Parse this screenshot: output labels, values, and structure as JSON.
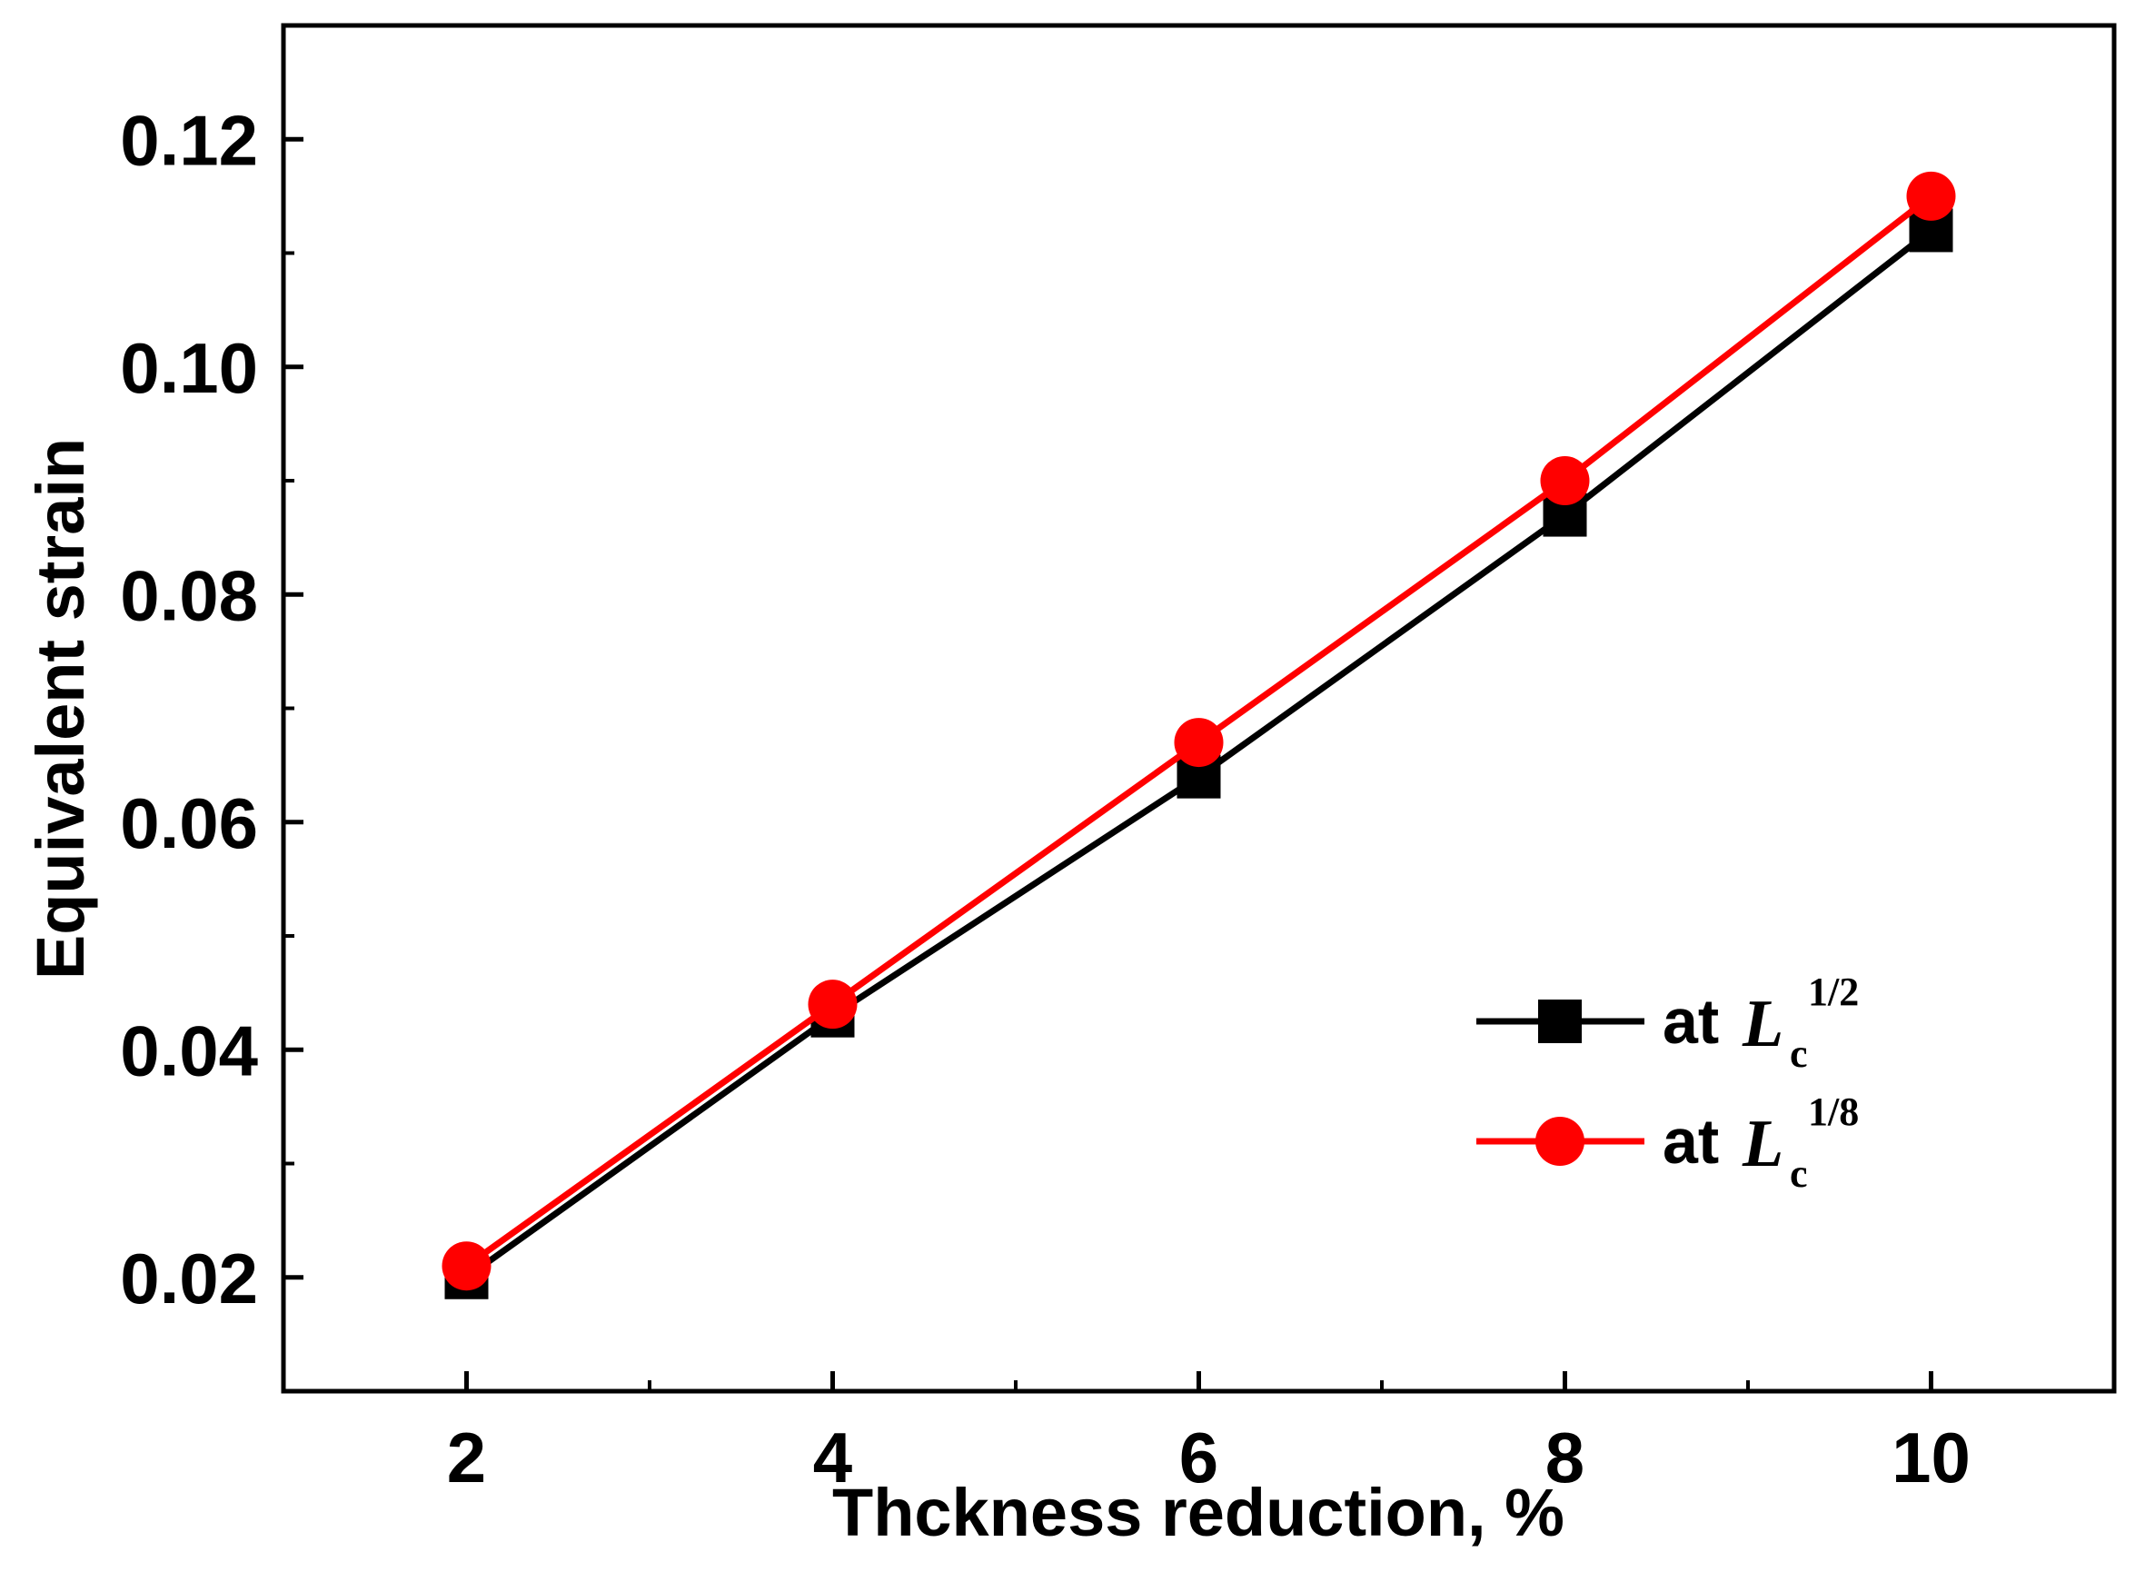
{
  "chart_data": {
    "type": "line",
    "title": "",
    "xlabel": "Thckness reduction, %",
    "ylabel": "Equivalent strain",
    "xlim": [
      1,
      11
    ],
    "ylim": [
      0.01,
      0.13
    ],
    "x_ticks": [
      2,
      4,
      6,
      8,
      10
    ],
    "x_tick_labels": [
      "2",
      "4",
      "6",
      "8",
      "10"
    ],
    "y_ticks": [
      0.02,
      0.04,
      0.06,
      0.08,
      0.1,
      0.12
    ],
    "y_tick_labels": [
      "0.02",
      "0.04",
      "0.06",
      "0.08",
      "0.10",
      "0.12"
    ],
    "grid": false,
    "legend_position": "lower-right",
    "series": [
      {
        "name": "at Lc1/2",
        "legend_prefix": "at",
        "legend_var": "L",
        "legend_sub": "c",
        "legend_sup": "1/2",
        "color": "#000000",
        "marker": "square",
        "x": [
          2,
          4,
          6,
          8,
          10
        ],
        "y": [
          0.02,
          0.043,
          0.064,
          0.087,
          0.112
        ]
      },
      {
        "name": "at Lc1/8",
        "legend_prefix": "at",
        "legend_var": "L",
        "legend_sub": "c",
        "legend_sup": "1/8",
        "color": "#ff0000",
        "marker": "circle",
        "x": [
          2,
          4,
          6,
          8,
          10
        ],
        "y": [
          0.021,
          0.044,
          0.067,
          0.09,
          0.115
        ]
      }
    ]
  }
}
